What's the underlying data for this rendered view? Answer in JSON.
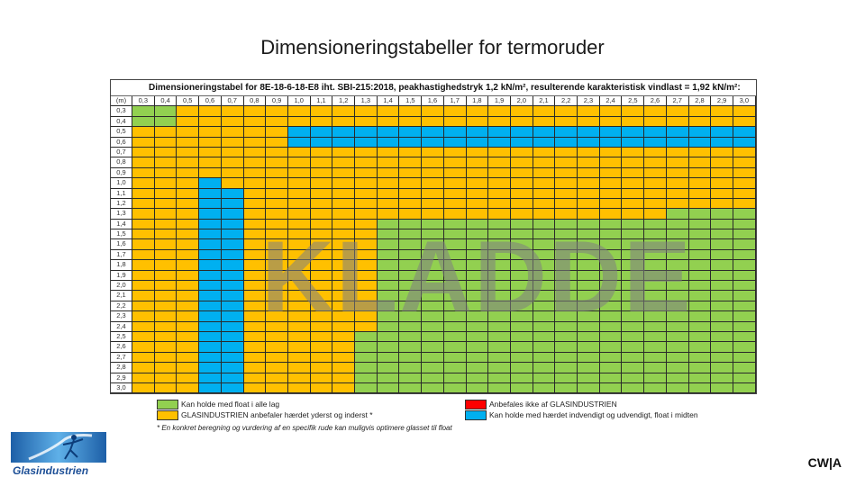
{
  "slide": {
    "title": "Dimensioneringstabeller for termoruder",
    "watermark": "KLADDE",
    "corner_label": "CW|A"
  },
  "table": {
    "heading": "Dimensioneringstabel for 8E-18-6-18-E8 iht. SBI-215:2018, peakhastighedstryk 1,2 kN/m², resulterende karakteristisk vindlast = 1,92 kN/m²:",
    "corner_unit": "(m)",
    "columns": [
      "0,3",
      "0,4",
      "0,5",
      "0,6",
      "0,7",
      "0,8",
      "0,9",
      "1,0",
      "1,1",
      "1,2",
      "1,3",
      "1,4",
      "1,5",
      "1,6",
      "1,7",
      "1,8",
      "1,9",
      "2,0",
      "2,1",
      "2,2",
      "2,3",
      "2,4",
      "2,5",
      "2,6",
      "2,7",
      "2,8",
      "2,9",
      "3,0"
    ],
    "rows": [
      "0,3",
      "0,4",
      "0,5",
      "0,6",
      "0,7",
      "0,8",
      "0,9",
      "1,0",
      "1,1",
      "1,2",
      "1,3",
      "1,4",
      "1,5",
      "1,6",
      "1,7",
      "1,8",
      "1,9",
      "2,0",
      "2,1",
      "2,2",
      "2,3",
      "2,4",
      "2,5",
      "2,6",
      "2,7",
      "2,8",
      "2,9",
      "3,0"
    ],
    "cells": [
      "GGOOOOOOOOOOOOOOOOOOOOOOOOOO",
      "GGOOOOOOOOOOOOOOOOOOOOOOOOOO",
      "OOOOOOOBBBBBBBBBBBBBBBBBBBBB",
      "OOOOOOOBBBBBBBBBBBBBBBBBBBBB",
      "OOOOOOOOOOOOOOOOOOOOOOOOOOOO",
      "OOOOOOOOOOOOOOOOOOOOOOOOOOOO",
      "OOOOOOOOOOOOOOOOOOOOOOOOOOOO",
      "OOOBOOOOOOOOOOOOOOOOOOOOOOOO",
      "OOOBBOOOOOOOOOOOOOOOOOOOOOOO",
      "OOOBBOOOOOOOOOOOOOOOOOOOOOOO",
      "OOOBBOOOOOOOOOOOOOOOOOOOGGGG",
      "OOOBBOOOOOOGGGGGGGGGGGGGGGGG",
      "OOOBBOOOOOOGGGGGGGGGGGGGGGGG",
      "OOOBBOOOOOOGGGGGGGGGGGGGGGGG",
      "OOOBBOOOOOOGGGGGGGGGGGGGGGGG",
      "OOOBBOOOOOOGGGGGGGGGGGGGGGGG",
      "OOOBBOOOOOOGGGGGGGGGGGGGGGGG",
      "OOOBBOOOOOOGGGGGGGGGGGGGGGGG",
      "OOOBBOOOOOOGGGGGGGGGGGGGGGGG",
      "OOOBBOOOOOOGGGGGGGGGGGGGGGGG",
      "OOOBBOOOOOOGGGGGGGGGGGGGGGGG",
      "OOOBBOOOOOOGGGGGGGGGGGGGGGGG",
      "OOOBBOOOOOGGGGGGGGGGGGGGGGGG",
      "OOOBBOOOOOGGGGGGGGGGGGGGGGGG",
      "OOOBBOOOOOGGGGGGGGGGGGGGGGGG",
      "OOOBBOOOOOGGGGGGGGGGGGGGGGGG",
      "OOOBBOOOOOGGGGGGGGGGGGGGGGGG",
      "OOOBBOOOOOGGGGGGGGGGGGGGGGGG"
    ]
  },
  "colors": {
    "green": "#92d050",
    "orange": "#ffc000",
    "blue": "#00b0f0",
    "red": "#ff0000"
  },
  "legend": {
    "green": "Kan holde med float i alle lag",
    "orange": "GLASINDUSTRIEN anbefaler hærdet yderst og inderst *",
    "red": "Anbefales ikke af GLASINDUSTRIEN",
    "blue": "Kan holde med hærdet indvendigt og udvendigt, float i midten",
    "footnote": "* En konkret beregning og vurdering af en specifik rude kan muligvis optimere glasset til float"
  },
  "logo": {
    "text": "Glasindustrien"
  }
}
